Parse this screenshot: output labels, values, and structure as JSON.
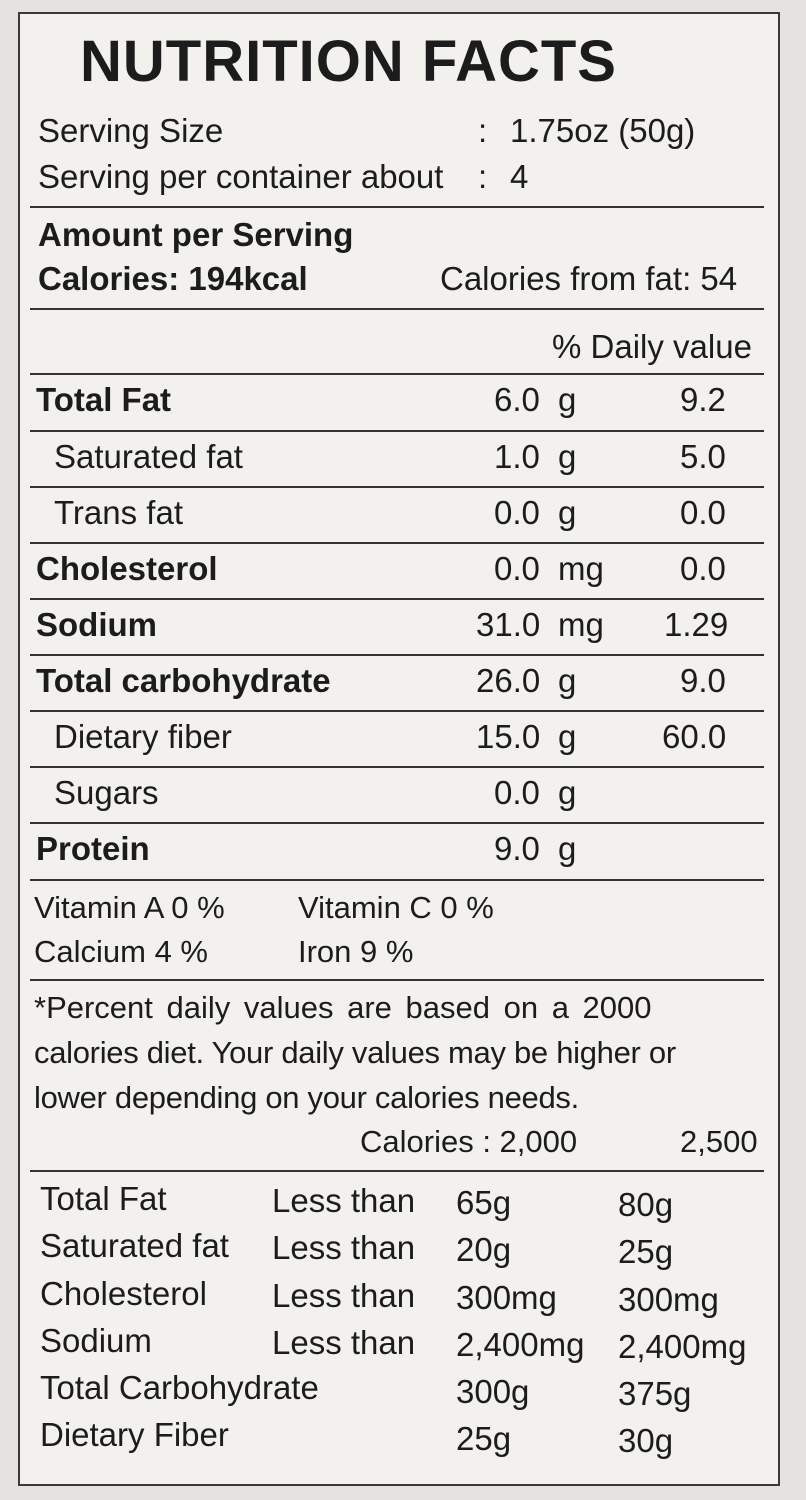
{
  "title": "NUTRITION FACTS",
  "serving": {
    "size_label": "Serving Size",
    "size_sep": ":",
    "size_value": "1.75oz (50g)",
    "per_container_label": "Serving per container about",
    "per_container_sep": ":",
    "per_container_value": "4"
  },
  "amount_header": "Amount per Serving",
  "calories": "Calories: 194kcal",
  "calories_from_fat": "Calories from fat: 54",
  "daily_value_header": "% Daily value",
  "nutrients": [
    {
      "name": "Total Fat",
      "amount": "6.0",
      "unit": "g",
      "dv": "9.2"
    },
    {
      "name": "Saturated fat",
      "amount": "1.0",
      "unit": "g",
      "dv": "5.0"
    },
    {
      "name": "Trans fat",
      "amount": "0.0",
      "unit": "g",
      "dv": "0.0"
    },
    {
      "name": "Cholesterol",
      "amount": "0.0",
      "unit": "mg",
      "dv": "0.0"
    },
    {
      "name": "Sodium",
      "amount": "31.0",
      "unit": "mg",
      "dv": "1.29"
    },
    {
      "name": "Total carbohydrate",
      "amount": "26.0",
      "unit": "g",
      "dv": "9.0"
    },
    {
      "name": "Dietary fiber",
      "amount": "15.0",
      "unit": "g",
      "dv": "60.0"
    },
    {
      "name": "Sugars",
      "amount": "0.0",
      "unit": "g",
      "dv": ""
    },
    {
      "name": "Protein",
      "amount": "9.0",
      "unit": "g",
      "dv": ""
    }
  ],
  "vitamins": {
    "vitamin_a": "Vitamin A  0 %",
    "vitamin_c": "Vitamin C 0 %",
    "calcium": "Calcium  4 %",
    "iron": "Iron 9 %"
  },
  "footnote": {
    "line1": "*Percent daily values are based on a 2000",
    "line2": "calories diet. Your daily values may be higher or",
    "line3": "lower depending on your calories needs."
  },
  "reference": {
    "calories_label": "Calories : 2,000",
    "calories_high": "2,500",
    "rows": [
      {
        "name": "Total Fat",
        "qual": "Less than",
        "v1": "65g",
        "v2": "80g"
      },
      {
        "name": "Saturated fat",
        "qual": "Less than",
        "v1": "20g",
        "v2": "25g"
      },
      {
        "name": "Cholesterol",
        "qual": "Less than",
        "v1": "300mg",
        "v2": "300mg"
      },
      {
        "name": "Sodium",
        "qual": "Less than",
        "v1": "2,400mg",
        "v2": "2,400mg"
      },
      {
        "name": "Total Carbohydrate",
        "qual": "",
        "v1": "300g",
        "v2": "375g"
      },
      {
        "name": "Dietary Fiber",
        "qual": "",
        "v1": "25g",
        "v2": "30g"
      }
    ]
  }
}
